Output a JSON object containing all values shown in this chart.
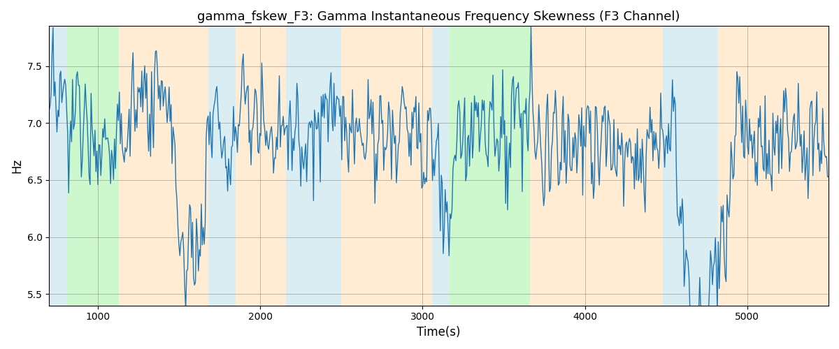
{
  "title": "gamma_fskew_F3: Gamma Instantaneous Frequency Skewness (F3 Channel)",
  "xlabel": "Time(s)",
  "ylabel": "Hz",
  "xlim": [
    700,
    5500
  ],
  "ylim": [
    5.4,
    7.85
  ],
  "yticks": [
    5.5,
    6.0,
    6.5,
    7.0,
    7.5
  ],
  "xticks": [
    1000,
    2000,
    3000,
    4000,
    5000
  ],
  "line_color": "#1f77b4",
  "line_width": 1.0,
  "bg_bands": [
    {
      "xmin": 700,
      "xmax": 810,
      "color": "#add8e6",
      "alpha": 0.45
    },
    {
      "xmin": 810,
      "xmax": 1130,
      "color": "#90ee90",
      "alpha": 0.45
    },
    {
      "xmin": 1130,
      "xmax": 1680,
      "color": "#ffd59e",
      "alpha": 0.45
    },
    {
      "xmin": 1680,
      "xmax": 1850,
      "color": "#add8e6",
      "alpha": 0.45
    },
    {
      "xmin": 1850,
      "xmax": 2160,
      "color": "#ffd59e",
      "alpha": 0.45
    },
    {
      "xmin": 2160,
      "xmax": 2500,
      "color": "#add8e6",
      "alpha": 0.45
    },
    {
      "xmin": 2500,
      "xmax": 3060,
      "color": "#ffd59e",
      "alpha": 0.45
    },
    {
      "xmin": 3060,
      "xmax": 3160,
      "color": "#add8e6",
      "alpha": 0.45
    },
    {
      "xmin": 3160,
      "xmax": 3660,
      "color": "#90ee90",
      "alpha": 0.45
    },
    {
      "xmin": 3660,
      "xmax": 3790,
      "color": "#ffd59e",
      "alpha": 0.45
    },
    {
      "xmin": 3790,
      "xmax": 4480,
      "color": "#ffd59e",
      "alpha": 0.45
    },
    {
      "xmin": 4480,
      "xmax": 4820,
      "color": "#add8e6",
      "alpha": 0.45
    },
    {
      "xmin": 4820,
      "xmax": 5500,
      "color": "#ffd59e",
      "alpha": 0.45
    }
  ],
  "signal_base": 7.0,
  "signal_std": 0.22,
  "ar_coef": 0.55
}
